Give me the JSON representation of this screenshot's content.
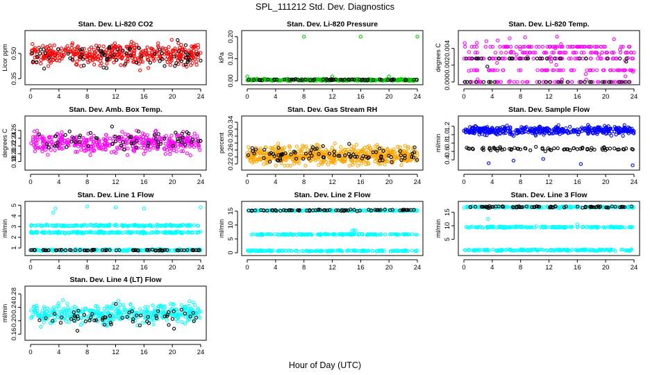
{
  "figure": {
    "title": "SPL_111212  Std. Dev. Diagnostics",
    "xlabel": "Hour of Day (UTC)"
  },
  "colors": {
    "red": "#ff0000",
    "black": "#000000",
    "green": "#00cc00",
    "magenta": "#ff00ff",
    "orange": "#ffa500",
    "blue": "#0000ff",
    "cyan": "#00ffff"
  },
  "chart_data": [
    {
      "type": "scatter",
      "title": "Stan. Dev. Li-820 CO2",
      "ylabel": "Licor ppm",
      "xlim": [
        0,
        24
      ],
      "ylim": [
        0.33,
        0.62
      ],
      "xticks": [
        0,
        4,
        8,
        12,
        16,
        20,
        24
      ],
      "yticks": [
        0.35,
        0.5
      ],
      "yticklabels": [
        "0.35",
        "0.50"
      ],
      "series": [
        {
          "color": "red",
          "point_count": 420,
          "y_center": 0.495,
          "y_spread": 0.045,
          "y_min": 0.35,
          "y_max": 0.6
        },
        {
          "color": "black",
          "point_count": 70,
          "y_center": 0.48,
          "y_spread": 0.05,
          "y_min": 0.37,
          "y_max": 0.58
        }
      ]
    },
    {
      "type": "scatter",
      "title": "Stan. Dev. Li-820 Pressure",
      "ylabel": "kPa",
      "xlim": [
        0,
        24
      ],
      "ylim": [
        -0.005,
        0.215
      ],
      "xticks": [
        0,
        4,
        8,
        12,
        16,
        20,
        24
      ],
      "yticks": [
        0.0,
        0.1,
        0.2
      ],
      "yticklabels": [
        "0.00",
        "0.10",
        "0.20"
      ],
      "series": [
        {
          "color": "green",
          "point_count": 400,
          "y_center": 0.004,
          "y_spread": 0.003,
          "y_min": 0.0,
          "y_max": 0.02,
          "outliers": [
            {
              "x": 8,
              "y": 0.2
            },
            {
              "x": 16,
              "y": 0.2
            },
            {
              "x": 24,
              "y": 0.2
            },
            {
              "x": 0,
              "y": 0.02
            },
            {
              "x": 12,
              "y": 0.02
            },
            {
              "x": 20,
              "y": 0.02
            }
          ]
        },
        {
          "color": "black",
          "point_count": 60,
          "y_center": 0.005,
          "y_spread": 0.002,
          "y_min": 0.0,
          "y_max": 0.01
        }
      ]
    },
    {
      "type": "scatter",
      "title": "Stan. Dev. Li-820 Temp.",
      "ylabel": "degrees C",
      "xlim": [
        0,
        24
      ],
      "ylim": [
        0,
        0.0058
      ],
      "xticks": [
        0,
        4,
        8,
        12,
        16,
        20,
        24
      ],
      "yticks": [
        0.0,
        0.002,
        0.004
      ],
      "yticklabels": [
        "0.000",
        "0.002",
        "0.004"
      ],
      "series": [
        {
          "color": "magenta",
          "point_count": 330,
          "levels": [
            0,
            0.0014,
            0.0028,
            0.0035,
            0.0042
          ],
          "y_min": 0,
          "y_max": 0.0056
        },
        {
          "color": "black",
          "point_count": 60,
          "levels": [
            0,
            0.0028
          ],
          "y_min": 0,
          "y_max": 0.0028
        }
      ]
    },
    {
      "type": "scatter",
      "title": "Stan. Dev. Amb. Box Temp.",
      "ylabel": "degrees C",
      "xlim": [
        0,
        24
      ],
      "ylim": [
        0.165,
        0.29
      ],
      "xticks": [
        0,
        4,
        8,
        12,
        16,
        20,
        24
      ],
      "yticks": [
        0.18,
        0.2,
        0.22,
        0.24,
        0.26
      ],
      "yticklabels": [
        "0.18",
        "0.20",
        "0.22",
        "0.24",
        "0.26"
      ],
      "series": [
        {
          "color": "magenta",
          "point_count": 420,
          "y_center": 0.228,
          "y_spread": 0.018,
          "y_min": 0.17,
          "y_max": 0.285
        },
        {
          "color": "black",
          "point_count": 60,
          "y_center": 0.235,
          "y_spread": 0.018,
          "y_min": 0.19,
          "y_max": 0.27
        }
      ]
    },
    {
      "type": "scatter",
      "title": "Stan. Dev. Gas Stream RH",
      "ylabel": "percent",
      "xlim": [
        0,
        24
      ],
      "ylim": [
        0.21,
        0.35
      ],
      "xticks": [
        0,
        4,
        8,
        12,
        16,
        20,
        24
      ],
      "yticks": [
        0.22,
        0.24,
        0.26,
        0.28,
        0.3,
        0.32,
        0.34
      ],
      "yticklabels": [
        "0.22",
        "",
        "0.26",
        "",
        "0.30",
        "",
        "0.34"
      ],
      "series": [
        {
          "color": "orange",
          "point_count": 560,
          "y_center": 0.245,
          "y_spread": 0.018,
          "y_min": 0.215,
          "y_max": 0.335
        },
        {
          "color": "black",
          "point_count": 80,
          "y_center": 0.245,
          "y_spread": 0.016,
          "y_min": 0.22,
          "y_max": 0.29
        }
      ]
    },
    {
      "type": "scatter",
      "title": "Stan. Dev. Sample Flow",
      "ylabel": "ml/min",
      "xlim": [
        0,
        24
      ],
      "ylim": [
        0.22,
        1.38
      ],
      "xticks": [
        0,
        4,
        8,
        12,
        16,
        20,
        24
      ],
      "yticks": [
        0.4,
        0.6,
        0.8,
        1.0,
        1.2
      ],
      "yticklabels": [
        "0.4",
        "0.6",
        "0.8",
        "1.0",
        "1.2"
      ],
      "series": [
        {
          "color": "blue",
          "point_count": 420,
          "y_center": 1.1,
          "y_spread": 0.07,
          "y_min": 0.9,
          "y_max": 1.32,
          "outliers": [
            {
              "x": 3.5,
              "y": 0.32
            },
            {
              "x": 7,
              "y": 0.38
            },
            {
              "x": 16.5,
              "y": 0.3
            },
            {
              "x": 23.8,
              "y": 0.27
            },
            {
              "x": 11.2,
              "y": 0.42
            }
          ]
        },
        {
          "color": "black",
          "point_count": 70,
          "y_center": 0.66,
          "y_spread": 0.03,
          "y_min": 0.58,
          "y_max": 0.75
        }
      ]
    },
    {
      "type": "scatter",
      "title": "Stan. Dev. Line 1 Flow",
      "ylabel": "ml/min",
      "xlim": [
        0,
        24
      ],
      "ylim": [
        0.55,
        5.1
      ],
      "xticks": [
        0,
        4,
        8,
        12,
        16,
        20,
        24
      ],
      "yticks": [
        1,
        2,
        3,
        4,
        5
      ],
      "yticklabels": [
        "1",
        "2",
        "3",
        "4",
        "5"
      ],
      "series": [
        {
          "color": "cyan",
          "point_count": 520,
          "bands": [
            2.45,
            3.1,
            0.8
          ],
          "y_spread": 0.06,
          "outliers": [
            {
              "x": 3.2,
              "y": 4.3
            },
            {
              "x": 3.5,
              "y": 4.7
            },
            {
              "x": 8,
              "y": 4.9
            },
            {
              "x": 12,
              "y": 4.8
            },
            {
              "x": 16,
              "y": 4.7
            },
            {
              "x": 24,
              "y": 4.8
            }
          ]
        },
        {
          "color": "black",
          "point_count": 70,
          "bands": [
            0.8
          ],
          "y_spread": 0.03
        }
      ]
    },
    {
      "type": "scatter",
      "title": "Stan. Dev. Line 2 Flow",
      "ylabel": "ml/min",
      "xlim": [
        0,
        24
      ],
      "ylim": [
        0,
        17.5
      ],
      "xticks": [
        0,
        4,
        8,
        12,
        16,
        20,
        24
      ],
      "yticks": [
        0,
        5,
        10,
        15
      ],
      "yticklabels": [
        "0",
        "5",
        "10",
        "15"
      ],
      "series": [
        {
          "color": "cyan",
          "point_count": 520,
          "bands": [
            15.2,
            6.6,
            0.7
          ],
          "y_spread": 0.15,
          "outliers": [
            {
              "x": 15,
              "y": 8.2
            },
            {
              "x": 15.3,
              "y": 8.0
            },
            {
              "x": 14.8,
              "y": 7.8
            }
          ]
        },
        {
          "color": "black",
          "point_count": 70,
          "bands": [
            15.3
          ],
          "y_spread": 0.2
        }
      ]
    },
    {
      "type": "scatter",
      "title": "Stan. Dev. Line 3 Flow",
      "ylabel": "ml/min",
      "xlim": [
        0,
        24
      ],
      "ylim": [
        0,
        18
      ],
      "xticks": [
        0,
        4,
        8,
        12,
        16,
        20,
        24
      ],
      "yticks": [
        5,
        10,
        15
      ],
      "yticklabels": [
        "5",
        "10",
        "15"
      ],
      "series": [
        {
          "color": "cyan",
          "point_count": 520,
          "bands": [
            16.9,
            9.5,
            1.0
          ],
          "y_spread": 0.2,
          "outliers": [
            {
              "x": 3.4,
              "y": 12.5
            },
            {
              "x": 16,
              "y": 10.5
            }
          ]
        },
        {
          "color": "black",
          "point_count": 70,
          "bands": [
            17.0
          ],
          "y_spread": 0.2
        }
      ]
    },
    {
      "type": "scatter",
      "title": "Stan. Dev. Line 4 (LT) Flow",
      "ylabel": "ml/min",
      "xlim": [
        0,
        24
      ],
      "ylim": [
        0.15,
        0.295
      ],
      "xticks": [
        0,
        4,
        8,
        12,
        16,
        20,
        24
      ],
      "yticks": [
        0.16,
        0.2,
        0.24,
        0.28
      ],
      "yticklabels": [
        "0.16",
        "0.20",
        "0.24",
        "0.28"
      ],
      "series": [
        {
          "color": "cyan",
          "point_count": 400,
          "y_center": 0.222,
          "y_spread": 0.02,
          "y_min": 0.158,
          "y_max": 0.29
        },
        {
          "color": "black",
          "point_count": 60,
          "y_center": 0.21,
          "y_spread": 0.02,
          "y_min": 0.17,
          "y_max": 0.25
        }
      ]
    }
  ]
}
